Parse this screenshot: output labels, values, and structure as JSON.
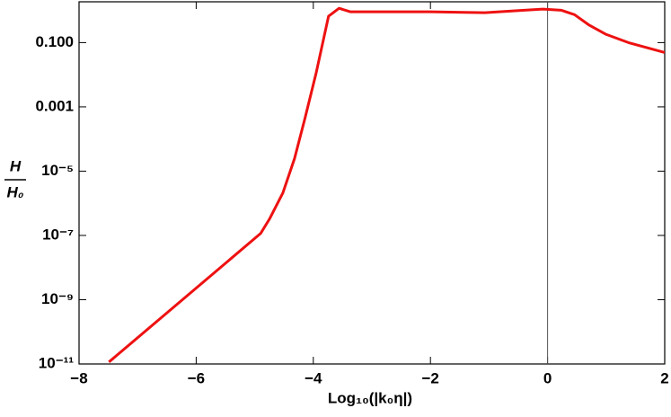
{
  "chart_data": {
    "type": "line",
    "x_label": "Log₁₀(|k₀η|)",
    "y_label_numerator": "H",
    "y_label_denominator": "H₀",
    "log_y": true,
    "vline": 0,
    "xlim": [
      -8,
      2
    ],
    "ylim": [
      1e-11,
      1.86
    ],
    "xticks": [
      {
        "value": -8,
        "label": "−8"
      },
      {
        "value": -6,
        "label": "−6"
      },
      {
        "value": -4,
        "label": "−4"
      },
      {
        "value": -2,
        "label": "−2"
      },
      0,
      2
    ],
    "yticks": [
      {
        "value": 1e-11,
        "label": "10⁻¹¹"
      },
      {
        "value": 1e-09,
        "label": "10⁻⁹"
      },
      {
        "value": 1e-07,
        "label": "10⁻⁷"
      },
      {
        "value": 1e-05,
        "label": "10⁻⁵"
      },
      {
        "value": 0.001,
        "label": "0.001"
      },
      {
        "value": 0.1,
        "label": "0.100"
      }
    ],
    "x": [
      -7.49,
      -4.9,
      -4.75,
      -4.52,
      -4.32,
      -4.14,
      -3.95,
      -3.74,
      -3.56,
      -3.37,
      -2.0,
      -1.07,
      -0.46,
      -0.08,
      0.23,
      0.46,
      0.7,
      1.0,
      1.38,
      2.0
    ],
    "series": [
      {
        "color": "#ee1111",
        "values": [
          1.15e-11,
          1.15e-07,
          3.2e-07,
          2.1e-06,
          2.5e-05,
          0.00046,
          0.0117,
          0.66,
          1.17,
          0.91,
          0.91,
          0.85,
          1.0,
          1.1,
          1.02,
          0.74,
          0.36,
          0.18,
          0.1,
          0.049
        ]
      }
    ]
  }
}
